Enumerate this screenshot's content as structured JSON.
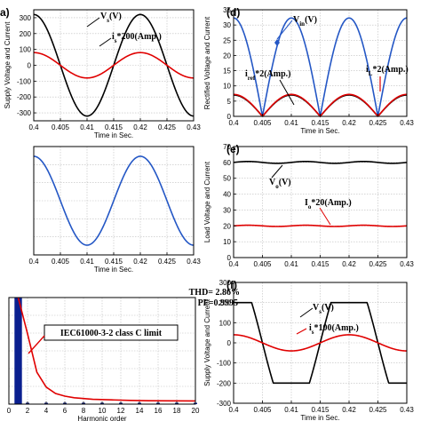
{
  "colors": {
    "black": "#000000",
    "red": "#e00000",
    "blue": "#2457c5",
    "navy": "#0a1f8f",
    "grid": "#bdbdbd"
  },
  "chart_data": [
    {
      "id": "a",
      "type": "line",
      "panel_label": "(a)",
      "xlabel": "Time in Sec.",
      "ylabel": "Supply Voltage and Current",
      "xlim": [
        0.4,
        0.43
      ],
      "ylim": [
        -350,
        350
      ],
      "xticks": [
        "0.4",
        "0.405",
        "0.41",
        "0.415",
        "0.42",
        "0.425",
        "0.43"
      ],
      "yticks": [
        "-300",
        "-200",
        "-100",
        "0",
        "100",
        "200",
        "300"
      ],
      "grid": true,
      "series": [
        {
          "name": "Vs(V)",
          "label_main": "V",
          "label_sub": "s",
          "label_rest": "(V)",
          "color": "#000000",
          "shape": "sine",
          "amplitude": 320,
          "frequency_hz": 50,
          "phase_deg": 90
        },
        {
          "name": "is*200(Amp.)",
          "label_main": "i",
          "label_sub": "s",
          "label_rest": "*200(Amp.)",
          "color": "#e00000",
          "shape": "sine",
          "amplitude": 80,
          "frequency_hz": 50,
          "phase_deg": 90
        }
      ]
    },
    {
      "id": "b",
      "type": "line",
      "panel_label": "",
      "xlabel": "Time in Sec.",
      "ylabel": "",
      "xlim": [
        0.4,
        0.43
      ],
      "ylim": [
        -1,
        1
      ],
      "xticks": [
        "0.4",
        "0.405",
        "0.41",
        "0.415",
        "0.42",
        "0.425",
        "0.43"
      ],
      "yticks": [],
      "grid": true,
      "series": [
        {
          "color": "#2457c5",
          "shape": "sine",
          "amplitude": 0.82,
          "frequency_hz": 50,
          "phase_deg": 90
        }
      ]
    },
    {
      "id": "c",
      "type": "bar",
      "panel_label": "",
      "xlabel": "Harmonic order",
      "ylabel": "",
      "xlim": [
        0,
        20
      ],
      "ylim": [
        0,
        1
      ],
      "xticks": [
        "0",
        "2",
        "4",
        "6",
        "8",
        "10",
        "12",
        "14",
        "16",
        "18",
        "20"
      ],
      "yticks": [],
      "grid": true,
      "bars": [
        {
          "x": 1,
          "value": 1.0
        }
      ],
      "limit_series": {
        "name": "IEC61000-3-2 class C limit",
        "color": "#e00000",
        "points": [
          [
            1,
            1.0
          ],
          [
            2,
            0.66
          ],
          [
            3,
            0.3
          ],
          [
            4,
            0.16
          ],
          [
            5,
            0.1
          ],
          [
            6,
            0.075
          ],
          [
            7,
            0.06
          ],
          [
            9,
            0.045
          ],
          [
            11,
            0.04
          ],
          [
            13,
            0.035
          ],
          [
            15,
            0.032
          ],
          [
            20,
            0.03
          ]
        ]
      },
      "annotations": {
        "thd": "THD= 2.86%",
        "pf": "PF=0.9995",
        "limit_label": "IEC61000-3-2 class C limit"
      }
    },
    {
      "id": "d",
      "type": "line",
      "panel_label": "(d)",
      "xlabel": "Time in Sec.",
      "ylabel": "Rectified Voltage and Current",
      "xlim": [
        0.4,
        0.43
      ],
      "ylim": [
        0,
        35
      ],
      "xticks": [
        "0.4",
        "0.405",
        "0.41",
        "0.415",
        "0.42",
        "0.425",
        "0.43"
      ],
      "yticks": [
        "0",
        "5",
        "10",
        "15",
        "20",
        "25",
        "30",
        "35"
      ],
      "grid": true,
      "series": [
        {
          "name": "Vin(V)",
          "label_main": "V",
          "label_sub": "in",
          "label_rest": "(V)",
          "color": "#2457c5",
          "shape": "abs_sine",
          "amplitude": 32.3,
          "frequency_hz": 50,
          "phase_deg": 90,
          "marker": "diamond"
        },
        {
          "name": "iref*2(Amp.)",
          "label_main": "i",
          "label_sub": "ref",
          "label_rest": "*2(Amp.)",
          "color": "#000000",
          "shape": "abs_sine",
          "amplitude": 7,
          "frequency_hz": 50,
          "phase_deg": 90
        },
        {
          "name": "iL*2(Amp.)",
          "label_main": "i",
          "label_sub": "L",
          "label_rest": "*2(Amp.)",
          "color": "#e00000",
          "shape": "abs_sine",
          "amplitude": 7.2,
          "frequency_hz": 50,
          "phase_deg": 90
        }
      ]
    },
    {
      "id": "e",
      "type": "line",
      "panel_label": "(e)",
      "xlabel": "",
      "ylabel": "Load Voltage and Current",
      "xlim": [
        0.4,
        0.43
      ],
      "ylim": [
        0,
        70
      ],
      "xticks": [
        "0.4",
        "0.405",
        "0.41",
        "0.415",
        "0.42",
        "0.425",
        "0.43"
      ],
      "yticks": [
        "0",
        "10",
        "20",
        "30",
        "40",
        "50",
        "60",
        "70"
      ],
      "grid": true,
      "series": [
        {
          "name": "Vo(V)",
          "label_main": "V",
          "label_sub": "o",
          "label_rest": "(V)",
          "color": "#000000",
          "shape": "dc_ripple",
          "mean": 60,
          "ripple": 0.6,
          "frequency_hz": 100
        },
        {
          "name": "Io*20(Amp.)",
          "label_main": "I",
          "label_sub": "o",
          "label_rest": "*20(Amp.)",
          "color": "#e00000",
          "shape": "dc_ripple",
          "mean": 20,
          "ripple": 0.4,
          "frequency_hz": 100
        }
      ]
    },
    {
      "id": "f",
      "type": "line",
      "panel_label": "(f)",
      "xlabel": "Time in Sec.",
      "ylabel": "Supply Voltage and Current",
      "xlim": [
        0.4,
        0.43
      ],
      "ylim": [
        -300,
        300
      ],
      "xticks": [
        "0.4",
        "0.405",
        "0.41",
        "0.415",
        "0.42",
        "0.425",
        "0.43"
      ],
      "yticks": [
        "-300",
        "-200",
        "-100",
        "0",
        "100",
        "200",
        "300"
      ],
      "grid": true,
      "series": [
        {
          "name": "Vs(V)",
          "label_main": "V",
          "label_sub": "s",
          "label_rest": "(V)",
          "color": "#000000",
          "shape": "trapezoid",
          "amplitude": 200,
          "frequency_hz": 50,
          "phase_deg": 90
        },
        {
          "name": "is*100(Amp.)",
          "label_main": "i",
          "label_sub": "s",
          "label_rest": "*100(Amp.)",
          "color": "#e00000",
          "shape": "sine",
          "amplitude": 40,
          "frequency_hz": 50,
          "phase_deg": 90
        }
      ]
    }
  ]
}
